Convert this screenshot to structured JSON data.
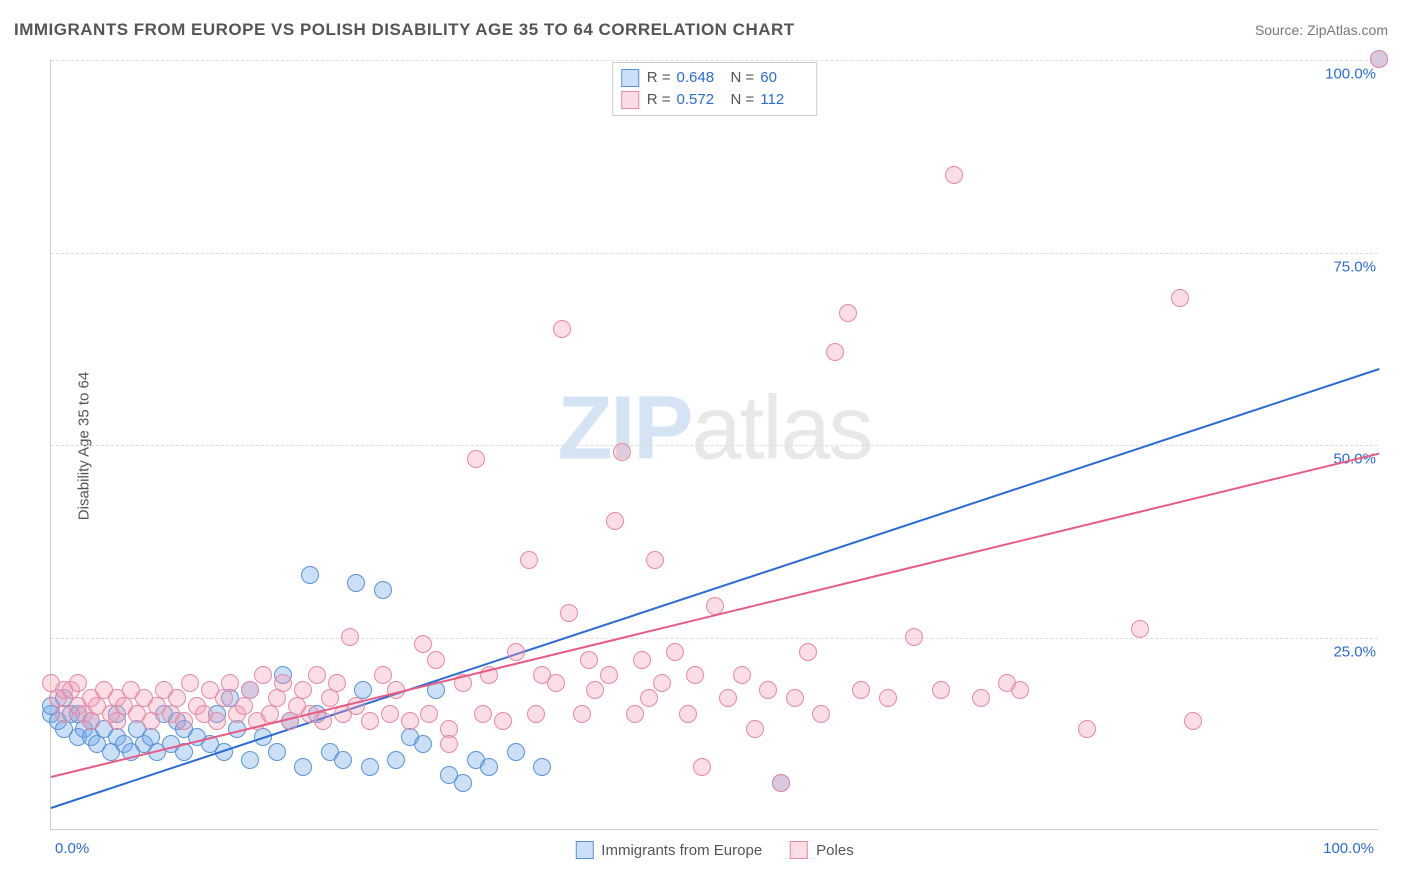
{
  "title": "IMMIGRANTS FROM EUROPE VS POLISH DISABILITY AGE 35 TO 64 CORRELATION CHART",
  "source_prefix": "Source: ",
  "source_name": "ZipAtlas.com",
  "ylabel": "Disability Age 35 to 64",
  "watermark_a": "ZIP",
  "watermark_b": "atlas",
  "chart": {
    "type": "scatter",
    "xlim": [
      0,
      100
    ],
    "ylim": [
      0,
      100
    ],
    "x_unit": "%",
    "y_unit": "%",
    "yticks": [
      25,
      50,
      75,
      100
    ],
    "ytick_labels": [
      "25.0%",
      "50.0%",
      "75.0%",
      "100.0%"
    ],
    "xtick_labels": {
      "min": "0.0%",
      "max": "100.0%"
    },
    "axis_label_color": "#2b6bd4",
    "grid_color": "#dddddd",
    "background": "#ffffff",
    "marker_radius": 9,
    "marker_opacity": 0.55,
    "line_width": 2,
    "series": [
      {
        "name": "Immigrants from Europe",
        "color": "#6aa3e8",
        "fill": "rgba(106,163,232,0.35)",
        "border": "#5b93d8",
        "line_color": "#2b6bd4",
        "R": "0.648",
        "N": "60",
        "trend": {
          "x1": 0,
          "y1": 3,
          "x2": 100,
          "y2": 60
        },
        "points": [
          [
            0,
            15
          ],
          [
            0,
            16
          ],
          [
            0.5,
            14
          ],
          [
            1,
            17
          ],
          [
            1,
            13
          ],
          [
            1.5,
            15
          ],
          [
            2,
            12
          ],
          [
            2,
            15
          ],
          [
            2.5,
            13
          ],
          [
            3,
            14
          ],
          [
            3,
            12
          ],
          [
            3.5,
            11
          ],
          [
            4,
            13
          ],
          [
            4.5,
            10
          ],
          [
            5,
            12
          ],
          [
            5,
            15
          ],
          [
            5.5,
            11
          ],
          [
            6,
            10
          ],
          [
            6.5,
            13
          ],
          [
            7,
            11
          ],
          [
            7.5,
            12
          ],
          [
            8,
            10
          ],
          [
            8.5,
            15
          ],
          [
            9,
            11
          ],
          [
            9.5,
            14
          ],
          [
            10,
            10
          ],
          [
            10,
            13
          ],
          [
            11,
            12
          ],
          [
            12,
            11
          ],
          [
            12.5,
            15
          ],
          [
            13,
            10
          ],
          [
            13.5,
            17
          ],
          [
            14,
            13
          ],
          [
            15,
            9
          ],
          [
            15,
            18
          ],
          [
            16,
            12
          ],
          [
            17,
            10
          ],
          [
            17.5,
            20
          ],
          [
            18,
            14
          ],
          [
            19,
            8
          ],
          [
            19.5,
            33
          ],
          [
            20,
            15
          ],
          [
            21,
            10
          ],
          [
            22,
            9
          ],
          [
            23,
            32
          ],
          [
            23.5,
            18
          ],
          [
            24,
            8
          ],
          [
            25,
            31
          ],
          [
            26,
            9
          ],
          [
            27,
            12
          ],
          [
            28,
            11
          ],
          [
            29,
            18
          ],
          [
            30,
            7
          ],
          [
            31,
            6
          ],
          [
            32,
            9
          ],
          [
            33,
            8
          ],
          [
            35,
            10
          ],
          [
            37,
            8
          ],
          [
            55,
            6
          ],
          [
            100,
            100
          ]
        ]
      },
      {
        "name": "Poles",
        "color": "#f29db5",
        "fill": "rgba(242,157,181,0.35)",
        "border": "#e68aa3",
        "line_color": "#e85b84",
        "R": "0.572",
        "N": "112",
        "trend": {
          "x1": 0,
          "y1": 7,
          "x2": 100,
          "y2": 49
        },
        "points": [
          [
            0,
            19
          ],
          [
            0.5,
            17
          ],
          [
            1,
            18
          ],
          [
            1,
            15
          ],
          [
            1.5,
            18
          ],
          [
            2,
            16
          ],
          [
            2,
            19
          ],
          [
            2.5,
            15
          ],
          [
            3,
            17
          ],
          [
            3,
            14
          ],
          [
            3.5,
            16
          ],
          [
            4,
            18
          ],
          [
            4.5,
            15
          ],
          [
            5,
            17
          ],
          [
            5,
            14
          ],
          [
            5.5,
            16
          ],
          [
            6,
            18
          ],
          [
            6.5,
            15
          ],
          [
            7,
            17
          ],
          [
            7.5,
            14
          ],
          [
            8,
            16
          ],
          [
            8.5,
            18
          ],
          [
            9,
            15
          ],
          [
            9.5,
            17
          ],
          [
            10,
            14
          ],
          [
            10.5,
            19
          ],
          [
            11,
            16
          ],
          [
            11.5,
            15
          ],
          [
            12,
            18
          ],
          [
            12.5,
            14
          ],
          [
            13,
            17
          ],
          [
            13.5,
            19
          ],
          [
            14,
            15
          ],
          [
            14.5,
            16
          ],
          [
            15,
            18
          ],
          [
            15.5,
            14
          ],
          [
            16,
            20
          ],
          [
            16.5,
            15
          ],
          [
            17,
            17
          ],
          [
            17.5,
            19
          ],
          [
            18,
            14
          ],
          [
            18.5,
            16
          ],
          [
            19,
            18
          ],
          [
            19.5,
            15
          ],
          [
            20,
            20
          ],
          [
            20.5,
            14
          ],
          [
            21,
            17
          ],
          [
            21.5,
            19
          ],
          [
            22,
            15
          ],
          [
            22.5,
            25
          ],
          [
            23,
            16
          ],
          [
            24,
            14
          ],
          [
            25,
            20
          ],
          [
            25.5,
            15
          ],
          [
            26,
            18
          ],
          [
            27,
            14
          ],
          [
            28,
            24
          ],
          [
            28.5,
            15
          ],
          [
            29,
            22
          ],
          [
            30,
            13
          ],
          [
            30,
            11
          ],
          [
            31,
            19
          ],
          [
            32,
            48
          ],
          [
            32.5,
            15
          ],
          [
            33,
            20
          ],
          [
            34,
            14
          ],
          [
            35,
            23
          ],
          [
            36,
            35
          ],
          [
            36.5,
            15
          ],
          [
            37,
            20
          ],
          [
            38,
            19
          ],
          [
            38.5,
            65
          ],
          [
            39,
            28
          ],
          [
            40,
            15
          ],
          [
            40.5,
            22
          ],
          [
            41,
            18
          ],
          [
            42,
            20
          ],
          [
            42.5,
            40
          ],
          [
            43,
            49
          ],
          [
            44,
            15
          ],
          [
            44.5,
            22
          ],
          [
            45,
            17
          ],
          [
            45.5,
            35
          ],
          [
            46,
            19
          ],
          [
            47,
            23
          ],
          [
            48,
            15
          ],
          [
            48.5,
            20
          ],
          [
            49,
            8
          ],
          [
            50,
            29
          ],
          [
            51,
            17
          ],
          [
            52,
            20
          ],
          [
            53,
            13
          ],
          [
            54,
            18
          ],
          [
            55,
            6
          ],
          [
            56,
            17
          ],
          [
            57,
            23
          ],
          [
            58,
            15
          ],
          [
            59,
            62
          ],
          [
            60,
            67
          ],
          [
            61,
            18
          ],
          [
            63,
            17
          ],
          [
            65,
            25
          ],
          [
            67,
            18
          ],
          [
            68,
            85
          ],
          [
            70,
            17
          ],
          [
            72,
            19
          ],
          [
            73,
            18
          ],
          [
            78,
            13
          ],
          [
            82,
            26
          ],
          [
            85,
            69
          ],
          [
            86,
            14
          ],
          [
            100,
            100
          ]
        ]
      }
    ]
  },
  "legend_top_labels": {
    "R": "R =",
    "N": "N ="
  },
  "legend_bottom": [
    {
      "label": "Immigrants from Europe",
      "series": 0
    },
    {
      "label": "Poles",
      "series": 1
    }
  ]
}
